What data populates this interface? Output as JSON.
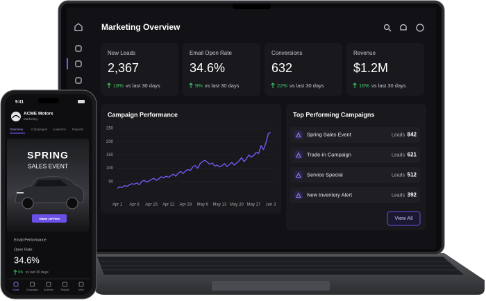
{
  "phone": {
    "time": "9:41",
    "brand": "ACME Motors",
    "subtitle": "Marketing",
    "tabs": [
      "Overview",
      "Campaigns",
      "Audience",
      "Reports"
    ],
    "hero": {
      "title": "SPRING",
      "subtitle": "SALES EVENT",
      "button": "VIEW OFFER"
    },
    "metric": {
      "section": "Email Performance",
      "label": "Open Rate",
      "value": "34.6%",
      "change": "9%",
      "note": "vs last 30 days"
    },
    "nav": [
      "Home",
      "Campaigns",
      "Audience",
      "Reports",
      "More"
    ]
  },
  "laptop": {
    "title": "Marketing Overview",
    "kpis": [
      {
        "label": "New Leads",
        "value": "2,367",
        "change": "18%",
        "note": "vs last 30 days"
      },
      {
        "label": "Email Open Rate",
        "value": "34.6%",
        "change": "9%",
        "note": "vs last 30 days"
      },
      {
        "label": "Conversions",
        "value": "632",
        "change": "22%",
        "note": "vs last 30 days"
      },
      {
        "label": "Revenue",
        "value": "$1.2M",
        "change": "16%",
        "note": "vs last 30 days"
      }
    ],
    "chart": {
      "type": "line",
      "title": "Campaign Performance",
      "color": "#7c5cff",
      "categories": [
        "Apr 1",
        null,
        null,
        null,
        null,
        null,
        null,
        "Apr 8",
        null,
        null,
        null,
        null,
        null,
        null,
        "Apr 15",
        null,
        null,
        null,
        null,
        null,
        null,
        "Apr 22",
        null,
        null,
        null,
        null,
        null,
        null,
        "Apr 29",
        null,
        null,
        null,
        null,
        null,
        null,
        "May 6",
        null,
        null,
        null,
        null,
        null,
        null,
        "May 13",
        null,
        null,
        null,
        null,
        null,
        null,
        "May 20",
        null,
        null,
        null,
        null,
        null,
        null,
        "May 27",
        null,
        null,
        null,
        null,
        null,
        null,
        "Jun 3"
      ],
      "values": [
        25,
        30,
        28,
        35,
        32,
        38,
        42,
        40,
        45,
        38,
        50,
        55,
        48,
        52,
        58,
        62,
        55,
        60,
        68,
        64,
        70,
        66,
        72,
        78,
        70,
        82,
        88,
        80,
        90,
        95,
        92,
        105,
        110,
        100,
        118,
        125,
        130,
        122,
        115,
        120,
        108,
        112,
        105,
        110,
        118,
        106,
        114,
        122,
        112,
        120,
        128,
        140,
        125,
        135,
        150,
        142,
        148,
        160,
        155,
        185,
        170,
        195,
        230,
        235
      ],
      "ylim": [
        0,
        250
      ],
      "yticks": [
        50,
        100,
        150,
        200,
        250
      ],
      "grid": true
    },
    "campaigns": {
      "title": "Top Performing Campaigns",
      "items": [
        {
          "name": "Spring Sales Event",
          "metric": "Leads",
          "value": 842
        },
        {
          "name": "Trade-in Campaign",
          "metric": "Leads",
          "value": 621
        },
        {
          "name": "Service Special",
          "metric": "Leads",
          "value": 512
        },
        {
          "name": "New Inventory Alert",
          "metric": "Leads",
          "value": 392
        }
      ],
      "button": "View All"
    }
  }
}
